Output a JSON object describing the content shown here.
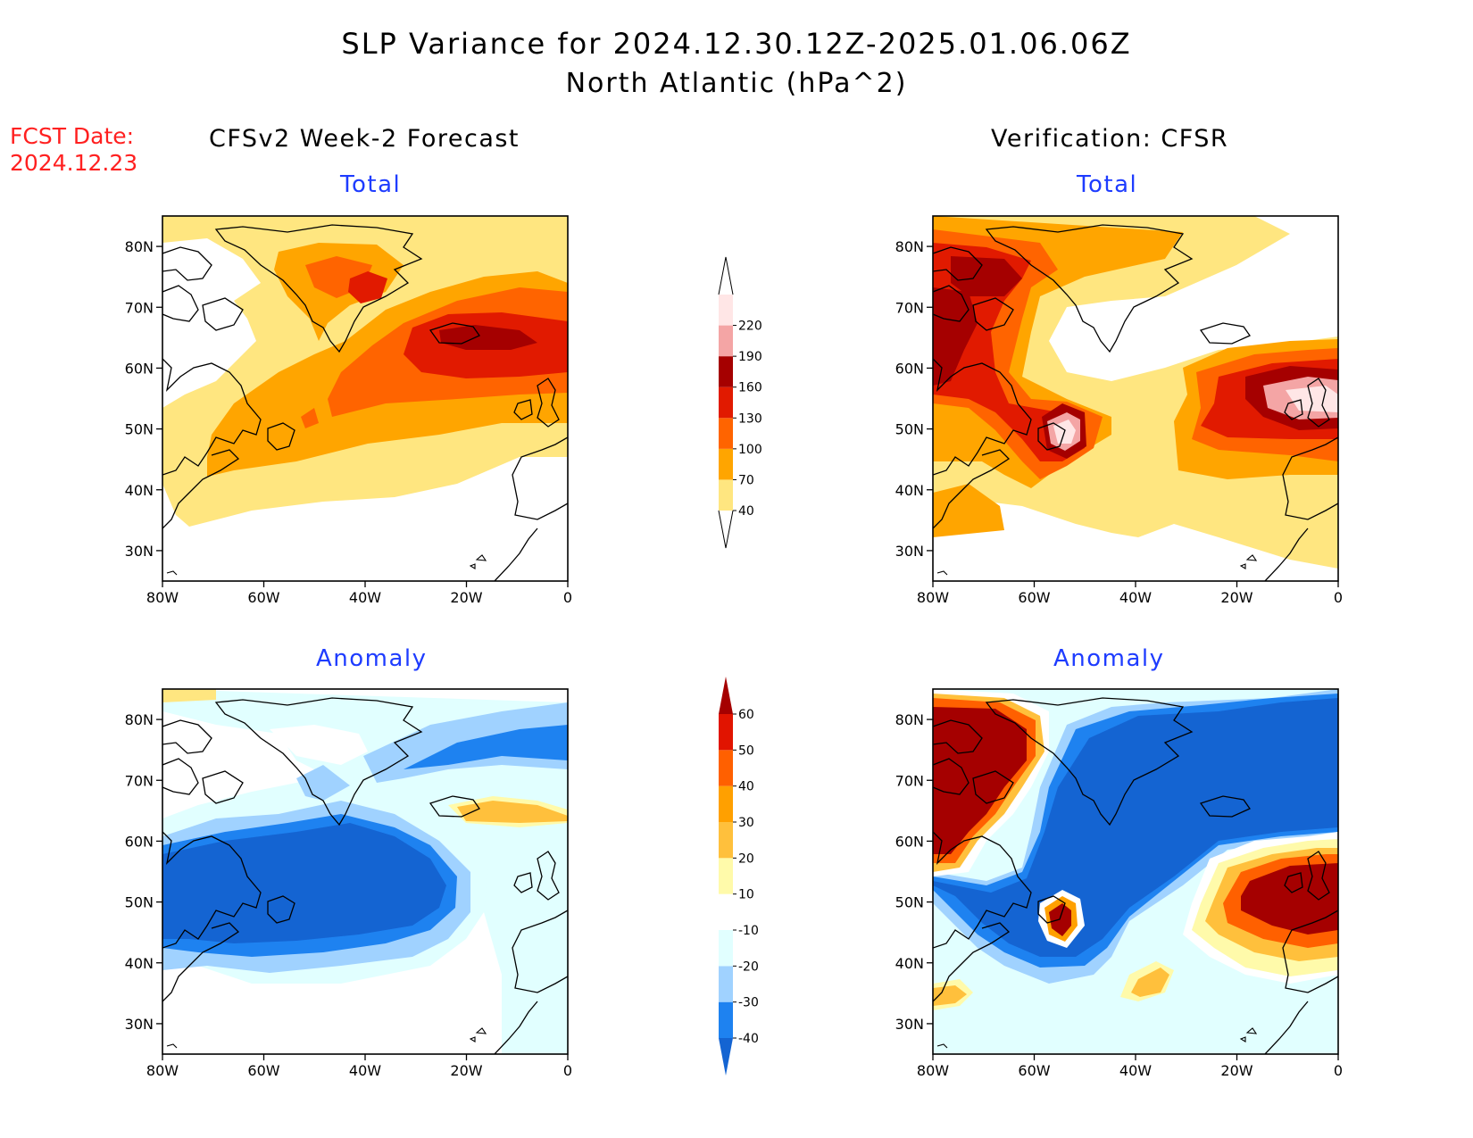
{
  "header": {
    "title": "SLP Variance for 2024.12.30.12Z-2025.01.06.06Z",
    "subtitle": "North Atlantic (hPa^2)",
    "fcst_line1": "FCST Date:",
    "fcst_line2": "2024.12.23"
  },
  "columns": {
    "left": "CFSv2 Week-2 Forecast",
    "right": "Verification: CFSR"
  },
  "panels": [
    {
      "id": "fcst-total",
      "title": "Total"
    },
    {
      "id": "verif-total",
      "title": "Total"
    },
    {
      "id": "fcst-anom",
      "title": "Anomaly"
    },
    {
      "id": "verif-anom",
      "title": "Anomaly"
    }
  ],
  "axes": {
    "lat_labels": [
      "80N",
      "70N",
      "60N",
      "50N",
      "40N",
      "30N"
    ],
    "lon_labels": [
      "80W",
      "60W",
      "40W",
      "20W",
      "0"
    ],
    "lat_range": [
      25,
      85
    ],
    "lon_range": [
      -80,
      0
    ]
  },
  "colorbars": {
    "total": {
      "levels": [
        "40",
        "70",
        "100",
        "130",
        "160",
        "190",
        "220"
      ],
      "colors": [
        "#ffe680",
        "#ffa500",
        "#ff6400",
        "#e11a00",
        "#a50000",
        "#f4a5a5",
        "#ffe6e6"
      ]
    },
    "anomaly": {
      "levels": [
        "-40",
        "-30",
        "-20",
        "-10",
        "10",
        "20",
        "30",
        "40",
        "50",
        "60"
      ],
      "colors": [
        "#1464d2",
        "#1e82f0",
        "#a0d2ff",
        "#e1ffff",
        "#ffffff",
        "#fffaaa",
        "#ffc03c",
        "#ffa000",
        "#ff6000",
        "#e11400",
        "#a50000"
      ]
    }
  }
}
